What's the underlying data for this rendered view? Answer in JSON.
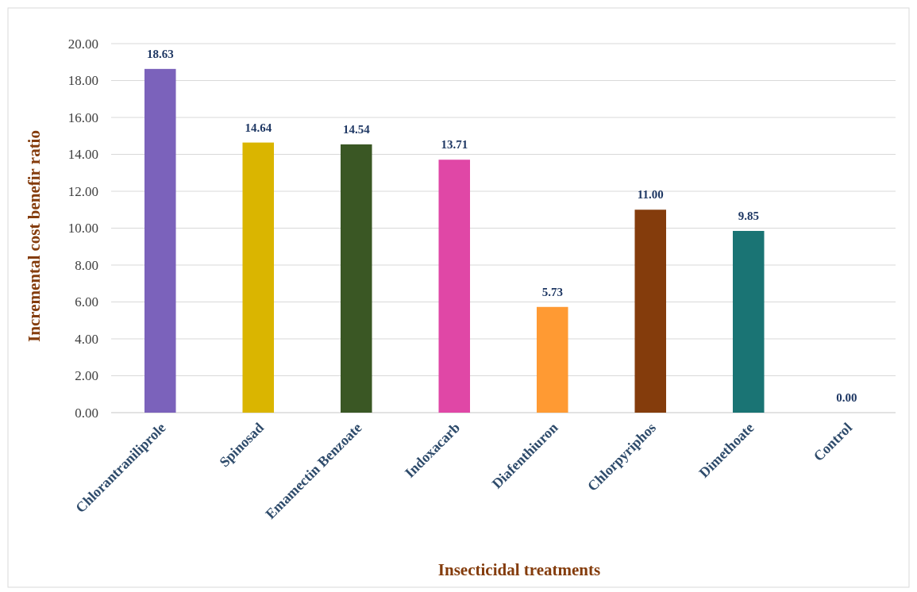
{
  "chart_data": {
    "type": "bar",
    "xlabel": "Insecticidal treatments",
    "ylabel": "Incremental cost benefir ratio",
    "categories": [
      "Chlorantraniliprole",
      "Spinosad",
      "Emamectin Benzoate",
      "Indoxacarb",
      "Diafenthiuron",
      "Chlorpyriphos",
      "Dimethoate",
      "Control"
    ],
    "values": [
      18.63,
      14.64,
      14.54,
      13.71,
      5.73,
      11.0,
      9.85,
      0.0
    ],
    "colors": [
      "#7b62bb",
      "#dab500",
      "#3a5724",
      "#e047a6",
      "#ff9a33",
      "#843c0c",
      "#1a7474",
      "#7b62bb"
    ],
    "value_labels": [
      "18.63",
      "14.64",
      "14.54",
      "13.71",
      "5.73",
      "11.00",
      "9.85",
      "0.00"
    ],
    "ylim": [
      0,
      20
    ],
    "yticks": [
      {
        "value": 0,
        "label": "0.00"
      },
      {
        "value": 2,
        "label": "2.00"
      },
      {
        "value": 4,
        "label": "4.00"
      },
      {
        "value": 6,
        "label": "6.00"
      },
      {
        "value": 8,
        "label": "8.00"
      },
      {
        "value": 10,
        "label": "10.00"
      },
      {
        "value": 12,
        "label": "12.00"
      },
      {
        "value": 14,
        "label": "14.00"
      },
      {
        "value": 16,
        "label": "16.00"
      },
      {
        "value": 18,
        "label": "18.00"
      },
      {
        "value": 20,
        "label": "20.00"
      }
    ],
    "grid": "y"
  }
}
